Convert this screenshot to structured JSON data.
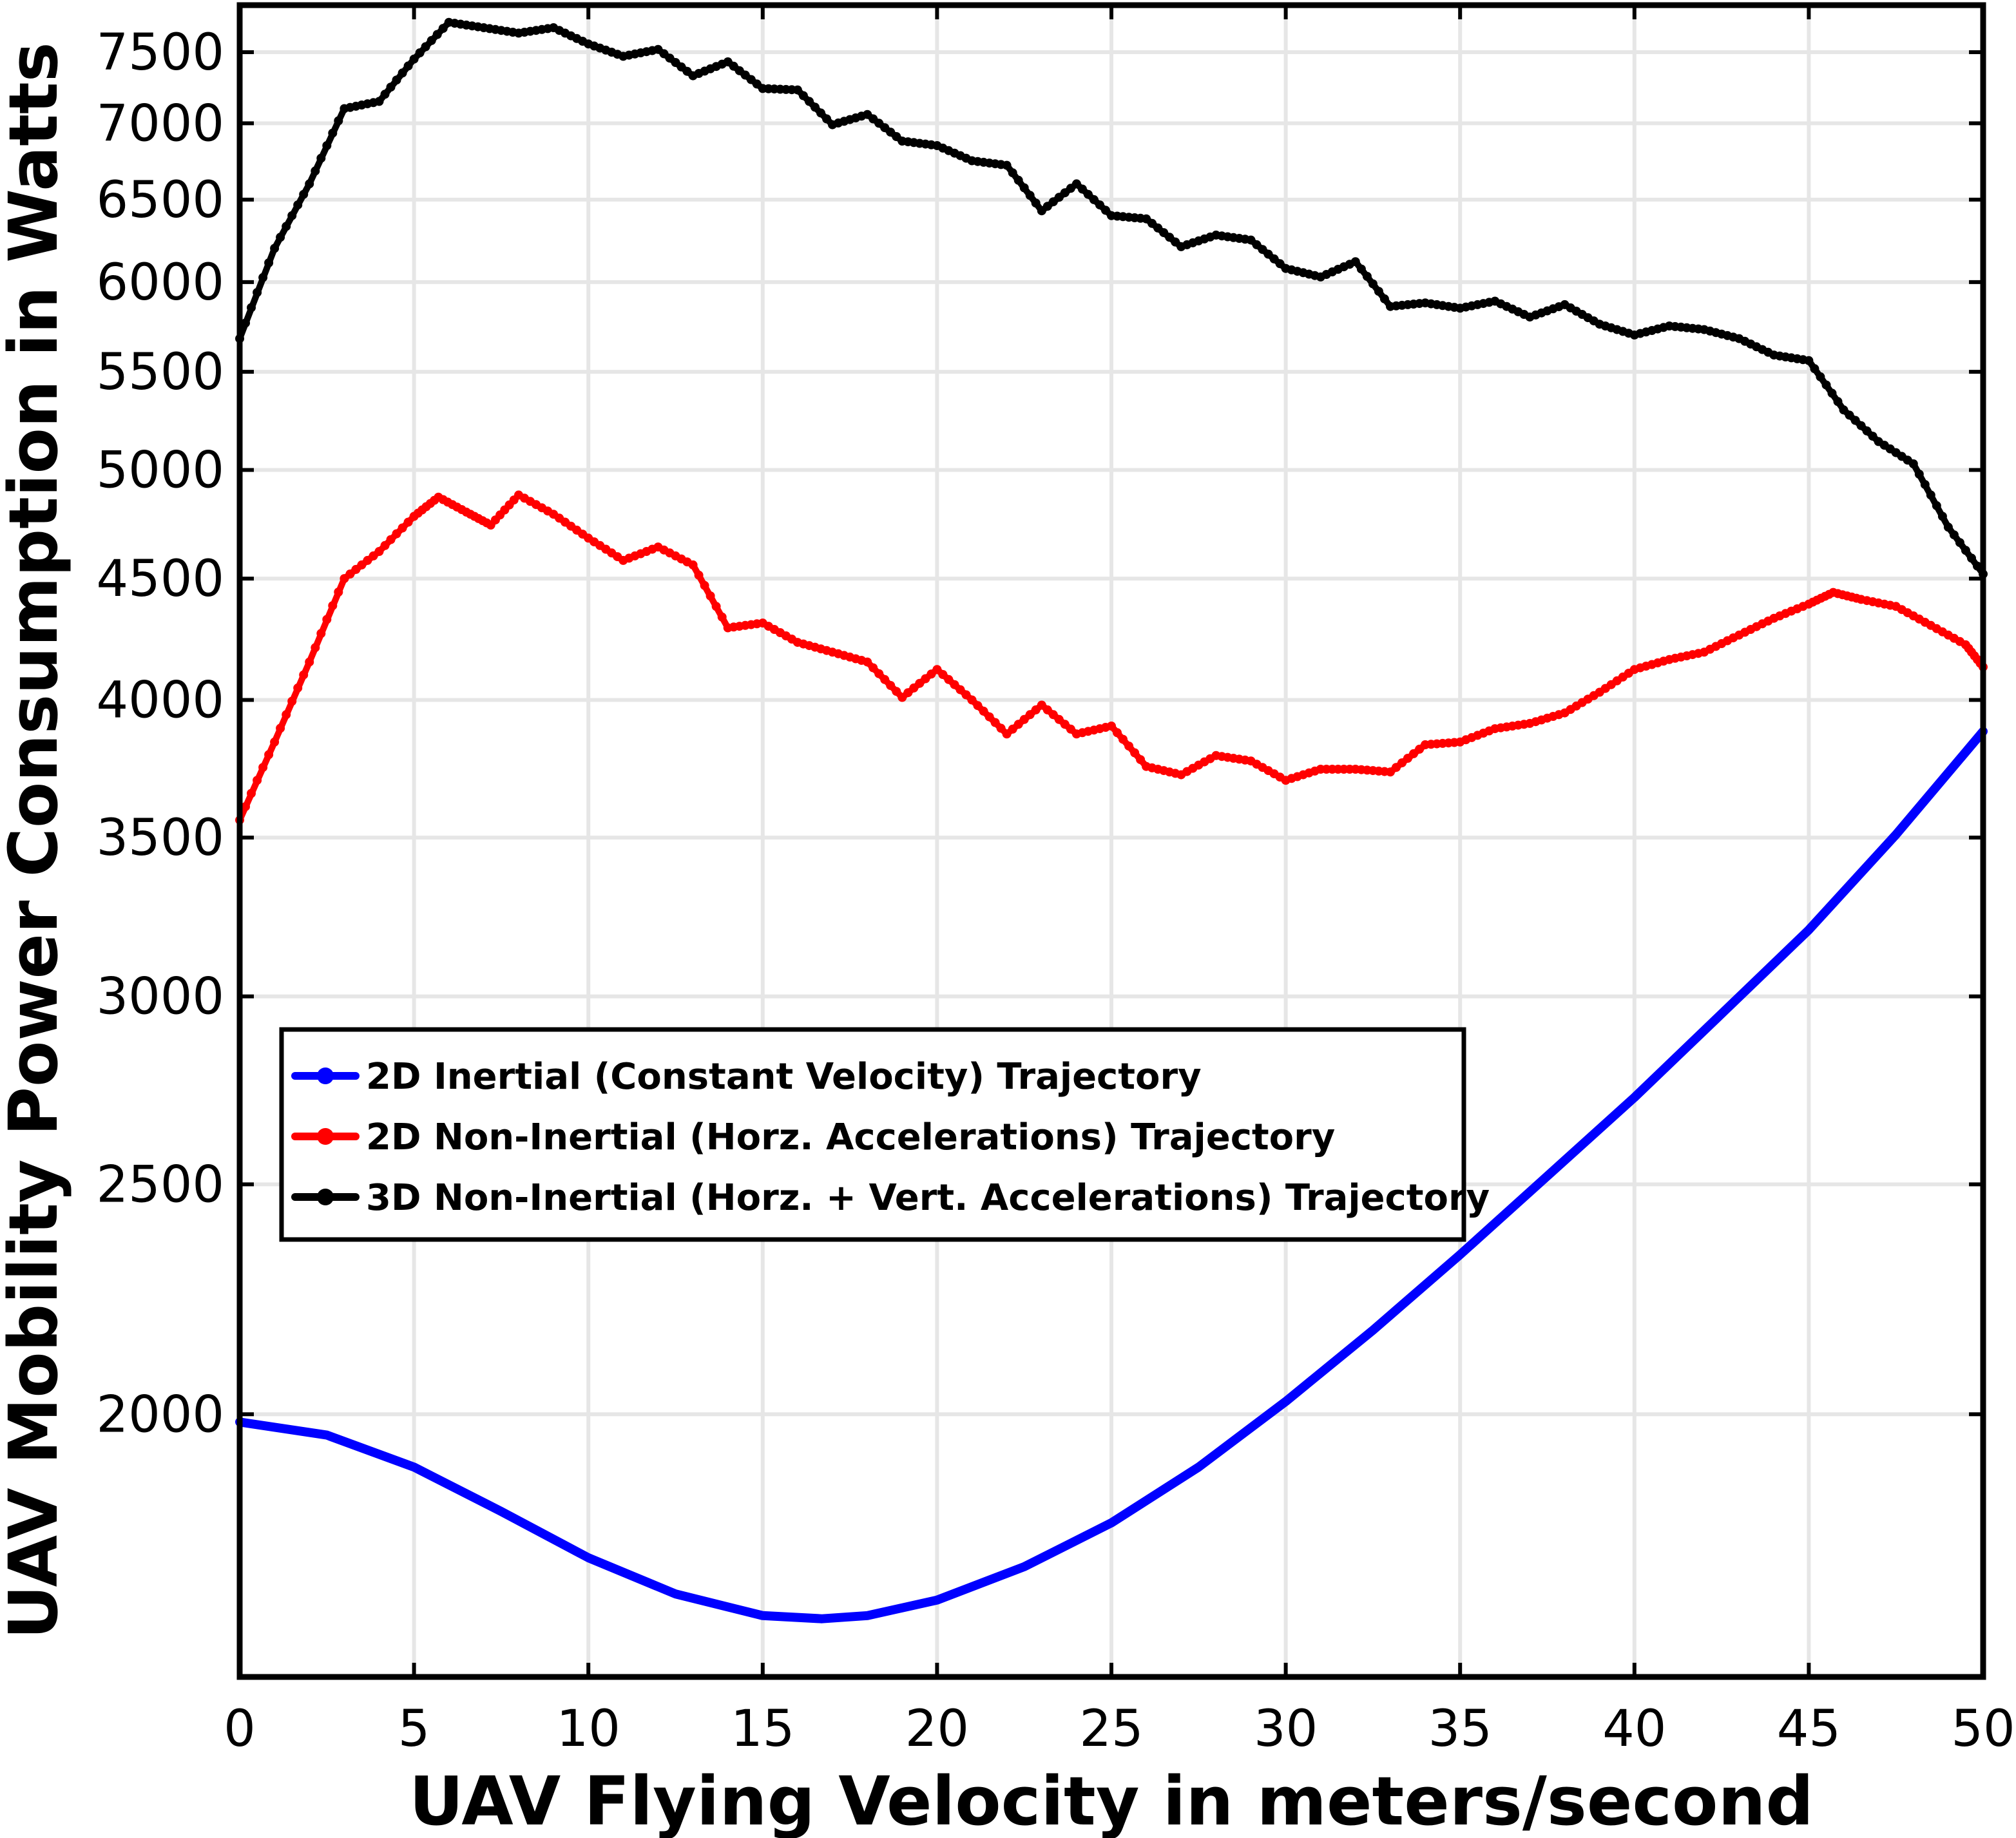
{
  "chart_data": {
    "type": "line",
    "title": "",
    "xlabel": "UAV Flying Velocity in meters/second",
    "ylabel": "UAV Mobility Power Consumption in Watts",
    "xlim": [
      0,
      50
    ],
    "ylim": [
      1550,
      7850
    ],
    "y_scale": "log",
    "grid": true,
    "legend_position": "center-left",
    "x_ticks": [
      0,
      5,
      10,
      15,
      20,
      25,
      30,
      35,
      40,
      45,
      50
    ],
    "y_ticks": [
      2000,
      2500,
      3000,
      3500,
      4000,
      4500,
      5000,
      5500,
      6000,
      6500,
      7000,
      7500
    ],
    "series": [
      {
        "name": "2D Inertial (Constant Velocity) Trajectory",
        "color": "#0000ff",
        "marker": "none",
        "x": [
          0,
          2.5,
          5,
          7.5,
          10,
          12.5,
          15,
          16.7,
          18,
          20,
          22.5,
          25,
          27.5,
          30,
          32.5,
          35,
          37.5,
          40,
          42.5,
          45,
          47.5,
          50
        ],
        "y": [
          1985,
          1960,
          1900,
          1820,
          1740,
          1680,
          1645,
          1640,
          1645,
          1670,
          1725,
          1800,
          1900,
          2025,
          2170,
          2335,
          2520,
          2720,
          2950,
          3200,
          3510,
          3880
        ]
      },
      {
        "name": "2D Non-Inertial (Horz. Accelerations) Trajectory",
        "color": "#ff0000",
        "marker": "dot",
        "x": [
          0,
          1,
          2,
          3,
          4,
          5,
          5.7,
          6.5,
          7.2,
          8,
          9,
          10,
          11,
          12,
          13,
          14,
          15,
          16,
          17,
          18,
          19,
          20,
          21,
          22,
          23,
          24,
          25,
          26,
          27,
          28,
          29,
          30,
          31,
          32,
          33,
          34,
          35,
          36,
          37,
          38,
          39,
          40,
          41,
          42,
          43,
          44,
          45,
          45.7,
          46.5,
          47.5,
          48.5,
          49.5,
          50
        ],
        "y": [
          3560,
          3840,
          4150,
          4500,
          4620,
          4780,
          4870,
          4800,
          4740,
          4880,
          4790,
          4680,
          4580,
          4640,
          4560,
          4290,
          4310,
          4230,
          4190,
          4150,
          4010,
          4120,
          4000,
          3870,
          3980,
          3870,
          3900,
          3750,
          3720,
          3790,
          3770,
          3700,
          3740,
          3740,
          3730,
          3830,
          3840,
          3890,
          3910,
          3950,
          4030,
          4120,
          4160,
          4190,
          4260,
          4330,
          4390,
          4440,
          4410,
          4380,
          4300,
          4220,
          4130
        ]
      },
      {
        "name": "3D Non-Inertial (Horz. + Vert. Accelerations) Trajectory",
        "color": "#000000",
        "marker": "dot",
        "x": [
          0,
          1,
          2,
          3,
          4,
          5,
          6,
          7,
          8,
          9,
          10,
          11,
          12,
          13,
          14,
          15,
          16,
          17,
          18,
          19,
          20,
          21,
          22,
          23,
          24,
          25,
          26,
          27,
          28,
          29,
          30,
          31,
          32,
          33,
          34,
          35,
          36,
          37,
          38,
          39,
          40,
          41,
          42,
          43,
          44,
          45,
          46,
          47,
          48,
          49,
          50
        ],
        "y": [
          5680,
          6200,
          6600,
          7100,
          7150,
          7450,
          7720,
          7680,
          7640,
          7680,
          7560,
          7470,
          7520,
          7330,
          7430,
          7240,
          7230,
          6990,
          7060,
          6880,
          6850,
          6750,
          6720,
          6430,
          6600,
          6400,
          6380,
          6210,
          6280,
          6250,
          6080,
          6030,
          6120,
          5860,
          5880,
          5850,
          5890,
          5800,
          5870,
          5760,
          5700,
          5750,
          5730,
          5680,
          5590,
          5560,
          5300,
          5140,
          5030,
          4730,
          4520
        ]
      }
    ]
  }
}
